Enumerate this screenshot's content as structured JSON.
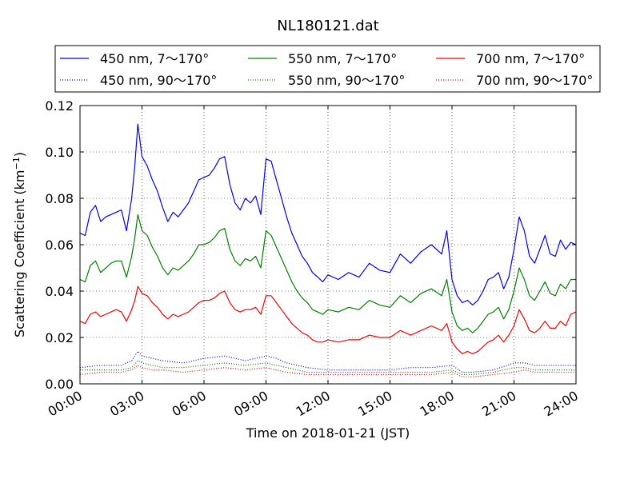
{
  "chart_data": {
    "type": "line",
    "title": "NL180121.dat",
    "xlabel": "Time on 2018-01-21 (JST)",
    "ylabel": "Scattering Coefficient (km",
    "ylabel_sup": "−1",
    "ylabel_close": ")",
    "xlim": [
      0,
      24
    ],
    "ylim": [
      0,
      0.12
    ],
    "grid": true,
    "legend_position": "top",
    "x_ticks": [
      {
        "value": 0,
        "label": "00:00"
      },
      {
        "value": 3,
        "label": "03:00"
      },
      {
        "value": 6,
        "label": "06:00"
      },
      {
        "value": 9,
        "label": "09:00"
      },
      {
        "value": 12,
        "label": "12:00"
      },
      {
        "value": 15,
        "label": "15:00"
      },
      {
        "value": 18,
        "label": "18:00"
      },
      {
        "value": 21,
        "label": "21:00"
      },
      {
        "value": 24,
        "label": "24:00"
      }
    ],
    "y_ticks": [
      {
        "value": 0.0,
        "label": "0.00"
      },
      {
        "value": 0.02,
        "label": "0.02"
      },
      {
        "value": 0.04,
        "label": "0.04"
      },
      {
        "value": 0.06,
        "label": "0.06"
      },
      {
        "value": 0.08,
        "label": "0.08"
      },
      {
        "value": 0.1,
        "label": "0.10"
      },
      {
        "value": 0.12,
        "label": "0.12"
      }
    ],
    "series": [
      {
        "name": "450 nm, 7～170°",
        "color": "#0000ff",
        "style": "solid",
        "x": [
          0,
          0.25,
          0.5,
          0.75,
          1,
          1.25,
          1.5,
          1.75,
          2,
          2.25,
          2.5,
          2.65,
          2.8,
          3,
          3.25,
          3.5,
          3.75,
          4,
          4.25,
          4.5,
          4.75,
          5,
          5.25,
          5.5,
          5.75,
          6,
          6.25,
          6.5,
          6.75,
          7,
          7.25,
          7.5,
          7.75,
          8,
          8.25,
          8.5,
          8.75,
          9,
          9.25,
          9.5,
          9.75,
          10,
          10.25,
          10.5,
          10.75,
          11,
          11.25,
          11.5,
          11.75,
          12,
          12.5,
          13,
          13.5,
          14,
          14.5,
          15,
          15.5,
          16,
          16.5,
          17,
          17.5,
          17.75,
          18,
          18.25,
          18.5,
          18.75,
          19,
          19.25,
          19.5,
          19.75,
          20,
          20.25,
          20.5,
          20.75,
          21,
          21.25,
          21.5,
          21.75,
          22,
          22.25,
          22.5,
          22.75,
          23,
          23.25,
          23.5,
          23.75,
          24
        ],
        "y": [
          0.065,
          0.064,
          0.074,
          0.077,
          0.07,
          0.072,
          0.073,
          0.074,
          0.075,
          0.066,
          0.08,
          0.094,
          0.112,
          0.098,
          0.094,
          0.088,
          0.083,
          0.076,
          0.07,
          0.074,
          0.072,
          0.075,
          0.078,
          0.083,
          0.088,
          0.089,
          0.09,
          0.093,
          0.097,
          0.098,
          0.086,
          0.078,
          0.075,
          0.08,
          0.078,
          0.081,
          0.073,
          0.097,
          0.096,
          0.088,
          0.08,
          0.072,
          0.065,
          0.06,
          0.055,
          0.052,
          0.048,
          0.046,
          0.044,
          0.047,
          0.045,
          0.048,
          0.046,
          0.052,
          0.049,
          0.048,
          0.056,
          0.052,
          0.057,
          0.06,
          0.056,
          0.066,
          0.045,
          0.038,
          0.035,
          0.036,
          0.034,
          0.036,
          0.04,
          0.045,
          0.046,
          0.048,
          0.041,
          0.046,
          0.058,
          0.072,
          0.066,
          0.055,
          0.052,
          0.058,
          0.064,
          0.056,
          0.055,
          0.062,
          0.058,
          0.061,
          0.06
        ]
      },
      {
        "name": "550 nm, 7～170°",
        "color": "#008000",
        "style": "solid",
        "x": [
          0,
          0.25,
          0.5,
          0.75,
          1,
          1.25,
          1.5,
          1.75,
          2,
          2.25,
          2.5,
          2.65,
          2.8,
          3,
          3.25,
          3.5,
          3.75,
          4,
          4.25,
          4.5,
          4.75,
          5,
          5.25,
          5.5,
          5.75,
          6,
          6.25,
          6.5,
          6.75,
          7,
          7.25,
          7.5,
          7.75,
          8,
          8.25,
          8.5,
          8.75,
          9,
          9.25,
          9.5,
          9.75,
          10,
          10.25,
          10.5,
          10.75,
          11,
          11.25,
          11.5,
          11.75,
          12,
          12.5,
          13,
          13.5,
          14,
          14.5,
          15,
          15.5,
          16,
          16.5,
          17,
          17.5,
          17.75,
          18,
          18.25,
          18.5,
          18.75,
          19,
          19.25,
          19.5,
          19.75,
          20,
          20.25,
          20.5,
          20.75,
          21,
          21.25,
          21.5,
          21.75,
          22,
          22.25,
          22.5,
          22.75,
          23,
          23.25,
          23.5,
          23.75,
          24
        ],
        "y": [
          0.045,
          0.044,
          0.051,
          0.053,
          0.048,
          0.05,
          0.052,
          0.053,
          0.053,
          0.046,
          0.055,
          0.063,
          0.073,
          0.066,
          0.064,
          0.059,
          0.055,
          0.05,
          0.047,
          0.05,
          0.049,
          0.051,
          0.053,
          0.056,
          0.06,
          0.06,
          0.061,
          0.063,
          0.066,
          0.067,
          0.058,
          0.053,
          0.051,
          0.054,
          0.053,
          0.055,
          0.05,
          0.066,
          0.064,
          0.059,
          0.054,
          0.049,
          0.044,
          0.04,
          0.037,
          0.035,
          0.032,
          0.031,
          0.03,
          0.032,
          0.031,
          0.033,
          0.032,
          0.036,
          0.034,
          0.033,
          0.038,
          0.035,
          0.039,
          0.041,
          0.038,
          0.045,
          0.031,
          0.025,
          0.023,
          0.024,
          0.022,
          0.024,
          0.027,
          0.03,
          0.031,
          0.033,
          0.028,
          0.032,
          0.04,
          0.05,
          0.045,
          0.038,
          0.036,
          0.04,
          0.044,
          0.039,
          0.038,
          0.043,
          0.041,
          0.045,
          0.045
        ]
      },
      {
        "name": "700 nm, 7～170°",
        "color": "#ff0000",
        "style": "solid",
        "x": [
          0,
          0.25,
          0.5,
          0.75,
          1,
          1.25,
          1.5,
          1.75,
          2,
          2.25,
          2.5,
          2.65,
          2.8,
          3,
          3.25,
          3.5,
          3.75,
          4,
          4.25,
          4.5,
          4.75,
          5,
          5.25,
          5.5,
          5.75,
          6,
          6.25,
          6.5,
          6.75,
          7,
          7.25,
          7.5,
          7.75,
          8,
          8.25,
          8.5,
          8.75,
          9,
          9.25,
          9.5,
          9.75,
          10,
          10.25,
          10.5,
          10.75,
          11,
          11.25,
          11.5,
          11.75,
          12,
          12.5,
          13,
          13.5,
          14,
          14.5,
          15,
          15.5,
          16,
          16.5,
          17,
          17.5,
          17.75,
          18,
          18.25,
          18.5,
          18.75,
          19,
          19.25,
          19.5,
          19.75,
          20,
          20.25,
          20.5,
          20.75,
          21,
          21.25,
          21.5,
          21.75,
          22,
          22.25,
          22.5,
          22.75,
          23,
          23.25,
          23.5,
          23.75,
          24
        ],
        "y": [
          0.027,
          0.026,
          0.03,
          0.031,
          0.029,
          0.03,
          0.031,
          0.032,
          0.031,
          0.027,
          0.032,
          0.036,
          0.042,
          0.039,
          0.038,
          0.035,
          0.033,
          0.03,
          0.028,
          0.03,
          0.029,
          0.03,
          0.031,
          0.033,
          0.035,
          0.036,
          0.036,
          0.037,
          0.039,
          0.04,
          0.035,
          0.032,
          0.031,
          0.032,
          0.032,
          0.033,
          0.03,
          0.038,
          0.038,
          0.035,
          0.032,
          0.029,
          0.026,
          0.024,
          0.022,
          0.021,
          0.019,
          0.018,
          0.018,
          0.019,
          0.018,
          0.019,
          0.019,
          0.021,
          0.02,
          0.02,
          0.023,
          0.021,
          0.023,
          0.025,
          0.023,
          0.026,
          0.018,
          0.015,
          0.013,
          0.014,
          0.013,
          0.014,
          0.016,
          0.018,
          0.019,
          0.021,
          0.018,
          0.021,
          0.025,
          0.032,
          0.028,
          0.023,
          0.022,
          0.024,
          0.027,
          0.024,
          0.024,
          0.027,
          0.025,
          0.03,
          0.031
        ]
      },
      {
        "name": "450 nm, 90～170°",
        "color": "#0000ff",
        "style": "dotted",
        "x": [
          0,
          1,
          2,
          2.5,
          2.8,
          3,
          3.5,
          4,
          5,
          6,
          7,
          8,
          9,
          9.5,
          10,
          11,
          12,
          13,
          14,
          15,
          16,
          17,
          18,
          18.5,
          19,
          20,
          21,
          21.5,
          22,
          23,
          24
        ],
        "y": [
          0.007,
          0.008,
          0.008,
          0.01,
          0.014,
          0.012,
          0.011,
          0.01,
          0.009,
          0.011,
          0.012,
          0.01,
          0.012,
          0.011,
          0.009,
          0.007,
          0.006,
          0.006,
          0.006,
          0.006,
          0.007,
          0.007,
          0.008,
          0.005,
          0.005,
          0.006,
          0.009,
          0.009,
          0.008,
          0.008,
          0.008
        ]
      },
      {
        "name": "550 nm, 90～170°",
        "color": "#008000",
        "style": "dotted",
        "x": [
          0,
          1,
          2,
          2.5,
          2.8,
          3,
          3.5,
          4,
          5,
          6,
          7,
          8,
          9,
          9.5,
          10,
          11,
          12,
          13,
          14,
          15,
          16,
          17,
          18,
          18.5,
          19,
          20,
          21,
          21.5,
          22,
          23,
          24
        ],
        "y": [
          0.006,
          0.006,
          0.006,
          0.007,
          0.01,
          0.009,
          0.008,
          0.007,
          0.007,
          0.008,
          0.009,
          0.008,
          0.009,
          0.008,
          0.007,
          0.005,
          0.005,
          0.005,
          0.005,
          0.005,
          0.005,
          0.005,
          0.006,
          0.004,
          0.004,
          0.005,
          0.007,
          0.007,
          0.006,
          0.006,
          0.006
        ]
      },
      {
        "name": "700 nm, 90～170°",
        "color": "#ff0000",
        "style": "dotted",
        "x": [
          0,
          1,
          2,
          2.5,
          2.8,
          3,
          3.5,
          4,
          5,
          6,
          7,
          8,
          9,
          9.5,
          10,
          11,
          12,
          13,
          14,
          15,
          16,
          17,
          18,
          18.5,
          19,
          20,
          21,
          21.5,
          22,
          23,
          24
        ],
        "y": [
          0.004,
          0.005,
          0.005,
          0.006,
          0.008,
          0.007,
          0.006,
          0.006,
          0.005,
          0.006,
          0.007,
          0.006,
          0.007,
          0.006,
          0.005,
          0.004,
          0.004,
          0.004,
          0.004,
          0.004,
          0.004,
          0.004,
          0.005,
          0.003,
          0.003,
          0.004,
          0.005,
          0.006,
          0.005,
          0.005,
          0.005
        ]
      }
    ],
    "legend_order": [
      0,
      3,
      1,
      4,
      2,
      5
    ]
  }
}
